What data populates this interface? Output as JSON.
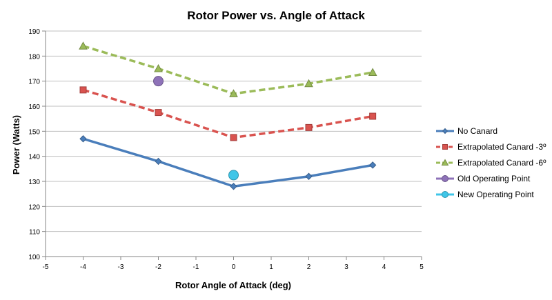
{
  "chart_data": {
    "type": "line",
    "title": "Rotor Power vs. Angle of Attack",
    "xlabel": "Rotor Angle of Attack (deg)",
    "ylabel": "Power (Watts)",
    "xlim": [
      -5,
      5
    ],
    "ylim": [
      100,
      190
    ],
    "x_ticks": [
      "-5",
      "-4",
      "-3",
      "-2",
      "-1",
      "0",
      "1",
      "2",
      "3",
      "4",
      "5"
    ],
    "y_ticks": [
      "100",
      "110",
      "120",
      "130",
      "140",
      "150",
      "160",
      "170",
      "180",
      "190"
    ],
    "grid": "horizontal",
    "legend_position": "right",
    "series": [
      {
        "name": "No Canard",
        "color": "#4a7ebb",
        "dash": "solid",
        "marker": "diamond",
        "x": [
          -4,
          -2,
          0,
          2,
          3.7
        ],
        "y": [
          147,
          138,
          128,
          132,
          136.5
        ]
      },
      {
        "name": "Extrapolated Canard -3º",
        "color": "#d9534f",
        "dash": "dashed",
        "marker": "square",
        "x": [
          -4,
          -2,
          0,
          2,
          3.7
        ],
        "y": [
          166.5,
          157.5,
          147.5,
          151.5,
          156
        ]
      },
      {
        "name": "Extrapolated Canard -6º",
        "color": "#9bbb59",
        "dash": "dashed",
        "marker": "triangle",
        "x": [
          -4,
          -2,
          0,
          2,
          3.7
        ],
        "y": [
          184,
          175,
          165,
          169,
          173.5
        ]
      },
      {
        "name": "Old Operating Point",
        "color": "#8e72b8",
        "dash": "none",
        "marker": "circle",
        "x": [
          -2
        ],
        "y": [
          170
        ]
      },
      {
        "name": "New Operating Point",
        "color": "#3fc6e8",
        "dash": "none",
        "marker": "circle",
        "x": [
          0
        ],
        "y": [
          132.5
        ]
      }
    ]
  }
}
